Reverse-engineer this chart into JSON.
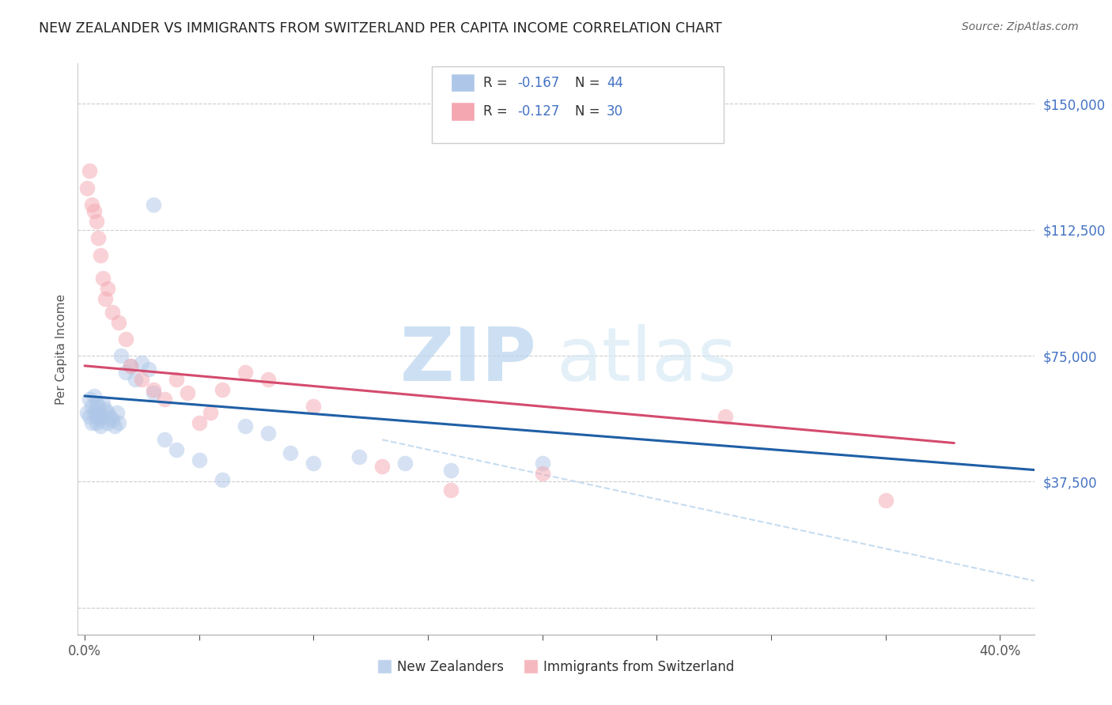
{
  "title": "NEW ZEALANDER VS IMMIGRANTS FROM SWITZERLAND PER CAPITA INCOME CORRELATION CHART",
  "source": "Source: ZipAtlas.com",
  "ylabel": "Per Capita Income",
  "xlim": [
    -0.003,
    0.415
  ],
  "ylim": [
    -8000,
    162000
  ],
  "ylabel_ticks": [
    0,
    37500,
    75000,
    112500,
    150000
  ],
  "xtick_positions": [
    0.0,
    0.05,
    0.1,
    0.15,
    0.2,
    0.25,
    0.3,
    0.35,
    0.4
  ],
  "blue_color": "#aec7e8",
  "pink_color": "#f4a7b0",
  "blue_line_color": "#1f5fa6",
  "pink_line_color": "#d44b6e",
  "dashed_line_color": "#c6dcf0",
  "legend_r_blue": "R = ",
  "legend_v_blue": "-0.167",
  "legend_n_blue_label": "N = ",
  "legend_n_blue_val": "44",
  "legend_r_pink": "R = ",
  "legend_v_pink": "-0.127",
  "legend_n_pink_label": "N = ",
  "legend_n_pink_val": "30",
  "legend_label_blue": "New Zealanders",
  "legend_label_pink": "Immigrants from Switzerland",
  "blue_color_legend": "#aec7e8",
  "pink_color_legend": "#f4a7b0",
  "blue_scatter_x": [
    0.001,
    0.002,
    0.002,
    0.003,
    0.003,
    0.004,
    0.004,
    0.005,
    0.005,
    0.005,
    0.006,
    0.006,
    0.007,
    0.007,
    0.008,
    0.008,
    0.009,
    0.01,
    0.01,
    0.011,
    0.012,
    0.013,
    0.014,
    0.015,
    0.016,
    0.018,
    0.02,
    0.022,
    0.025,
    0.028,
    0.03,
    0.035,
    0.04,
    0.05,
    0.06,
    0.07,
    0.08,
    0.09,
    0.1,
    0.12,
    0.14,
    0.16,
    0.2,
    0.03
  ],
  "blue_scatter_y": [
    58000,
    62000,
    57000,
    60000,
    55000,
    63000,
    58000,
    61000,
    57000,
    55000,
    60000,
    58000,
    56000,
    54000,
    61000,
    57000,
    59000,
    58000,
    55000,
    57000,
    56000,
    54000,
    58000,
    55000,
    75000,
    70000,
    72000,
    68000,
    73000,
    71000,
    64000,
    50000,
    47000,
    44000,
    38000,
    54000,
    52000,
    46000,
    43000,
    45000,
    43000,
    41000,
    43000,
    120000
  ],
  "pink_scatter_x": [
    0.001,
    0.002,
    0.003,
    0.004,
    0.005,
    0.006,
    0.007,
    0.008,
    0.009,
    0.01,
    0.012,
    0.015,
    0.018,
    0.02,
    0.025,
    0.03,
    0.035,
    0.05,
    0.06,
    0.07,
    0.08,
    0.1,
    0.13,
    0.16,
    0.2,
    0.28,
    0.35,
    0.04,
    0.045,
    0.055
  ],
  "pink_scatter_y": [
    125000,
    130000,
    120000,
    118000,
    115000,
    110000,
    105000,
    98000,
    92000,
    95000,
    88000,
    85000,
    80000,
    72000,
    68000,
    65000,
    62000,
    55000,
    65000,
    70000,
    68000,
    60000,
    42000,
    35000,
    40000,
    57000,
    32000,
    68000,
    64000,
    58000
  ],
  "blue_line_x": [
    0.0,
    0.415
  ],
  "blue_line_y": [
    63000,
    41000
  ],
  "pink_line_x": [
    0.0,
    0.38
  ],
  "pink_line_y": [
    72000,
    49000
  ],
  "dashed_line_x": [
    0.13,
    0.415
  ],
  "dashed_line_y": [
    50000,
    8000
  ],
  "watermark_zip": "ZIP",
  "watermark_atlas": "atlas",
  "title_color": "#333333",
  "right_tick_color": "#4472c4",
  "grid_color": "#cccccc"
}
